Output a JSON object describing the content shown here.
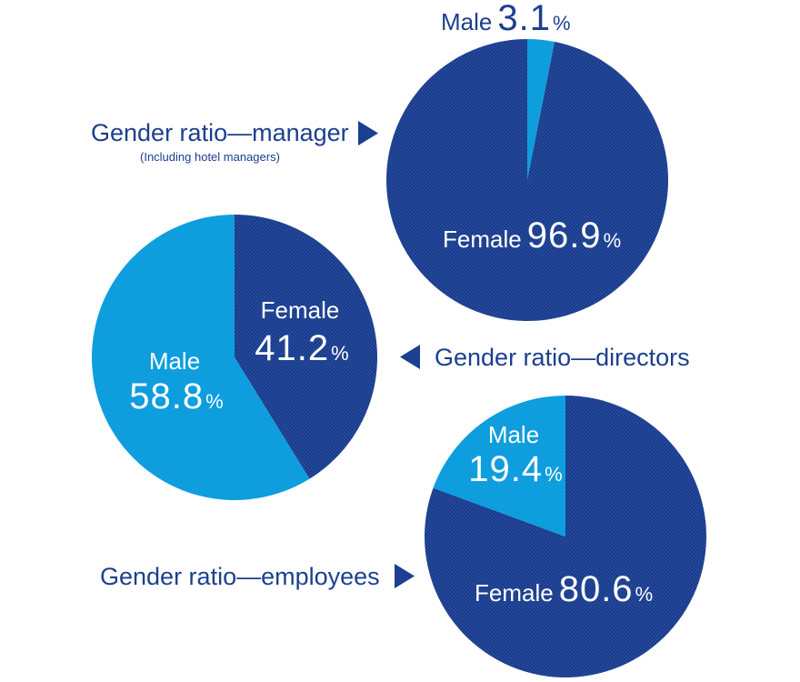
{
  "colors": {
    "female": "#1b3a87",
    "female_check": "#244a9e",
    "male": "#0e9ede",
    "text_dark": "#1c3f8f"
  },
  "chart_data": [
    {
      "type": "pie",
      "title": "Gender ratio—manager",
      "subtitle": "(Including hotel managers)",
      "slices": [
        {
          "label": "Male",
          "value": 3.1,
          "display": "3.1",
          "unit": "%",
          "color": "male"
        },
        {
          "label": "Female",
          "value": 96.9,
          "display": "96.9",
          "unit": "%",
          "color": "female"
        }
      ]
    },
    {
      "type": "pie",
      "title": "Gender ratio—directors",
      "slices": [
        {
          "label": "Female",
          "value": 41.2,
          "display": "41.2",
          "unit": "%",
          "color": "female"
        },
        {
          "label": "Male",
          "value": 58.8,
          "display": "58.8",
          "unit": "%",
          "color": "male"
        }
      ]
    },
    {
      "type": "pie",
      "title": "Gender ratio—employees",
      "slices": [
        {
          "label": "Female",
          "value": 80.6,
          "display": "80.6",
          "unit": "%",
          "color": "female"
        },
        {
          "label": "Male",
          "value": 19.4,
          "display": "19.4",
          "unit": "%",
          "color": "male"
        }
      ]
    }
  ]
}
